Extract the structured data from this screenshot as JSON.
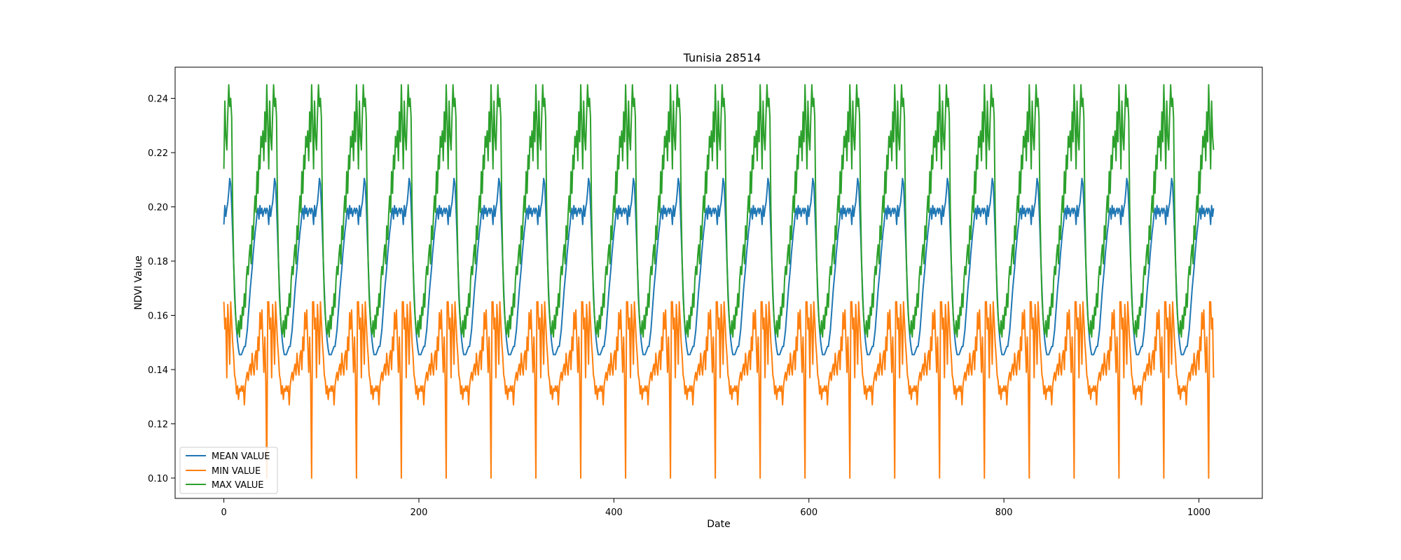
{
  "chart_data": {
    "type": "line",
    "title": "Tunisia 28514",
    "xlabel": "Date",
    "ylabel": "NDVI Value",
    "xlim": [
      -50,
      1065
    ],
    "ylim": [
      0.0925,
      0.2515
    ],
    "xticks": [
      0,
      200,
      400,
      600,
      800,
      1000
    ],
    "yticks": [
      0.1,
      0.12,
      0.14,
      0.16,
      0.18,
      0.2,
      0.22,
      0.24
    ],
    "xtick_labels": [
      "0",
      "200",
      "400",
      "600",
      "800",
      "1000"
    ],
    "ytick_labels": [
      "0.10",
      "0.12",
      "0.14",
      "0.16",
      "0.18",
      "0.20",
      "0.22",
      "0.24"
    ],
    "grid": false,
    "legend_position": "lower-left",
    "n_points": 1016,
    "cycle_length_days": 46,
    "n_cycles": 22,
    "series": [
      {
        "name": "MEAN VALUE",
        "color": "#1f77b4",
        "cycle_profile": [
          0.1935,
          0.2005,
          0.1965,
          0.1995,
          0.2015,
          0.2055,
          0.2105,
          0.2085,
          0.2005,
          0.1905,
          0.1795,
          0.1695,
          0.1605,
          0.1545,
          0.1505,
          0.1475,
          0.1455,
          0.1455,
          0.1455,
          0.1465,
          0.1475,
          0.1485,
          0.1485,
          0.1515,
          0.1545,
          0.1595,
          0.1645,
          0.1695,
          0.1735,
          0.1775,
          0.1825,
          0.1865,
          0.1905,
          0.1935,
          0.1975,
          0.1995,
          0.1955,
          0.2005,
          0.1975,
          0.1995,
          0.1965,
          0.1985,
          0.1995,
          0.1975,
          0.1995,
          0.1985
        ]
      },
      {
        "name": "MIN VALUE",
        "color": "#ff7f0e",
        "cycle_profile": [
          0.165,
          0.155,
          0.159,
          0.137,
          0.164,
          0.156,
          0.142,
          0.165,
          0.158,
          0.15,
          0.145,
          0.138,
          0.136,
          0.131,
          0.134,
          0.129,
          0.133,
          0.132,
          0.134,
          0.132,
          0.134,
          0.127,
          0.134,
          0.137,
          0.139,
          0.136,
          0.14,
          0.142,
          0.138,
          0.146,
          0.141,
          0.138,
          0.145,
          0.147,
          0.14,
          0.152,
          0.147,
          0.161,
          0.155,
          0.162,
          0.15,
          0.139,
          0.152,
          0.136,
          0.1,
          0.165
        ]
      },
      {
        "name": "MAX VALUE",
        "color": "#2ca02c",
        "cycle_profile": [
          0.214,
          0.239,
          0.226,
          0.221,
          0.234,
          0.245,
          0.237,
          0.24,
          0.233,
          0.2,
          0.18,
          0.167,
          0.16,
          0.155,
          0.153,
          0.158,
          0.152,
          0.16,
          0.155,
          0.163,
          0.16,
          0.168,
          0.163,
          0.173,
          0.178,
          0.175,
          0.182,
          0.186,
          0.179,
          0.193,
          0.188,
          0.197,
          0.204,
          0.198,
          0.213,
          0.205,
          0.219,
          0.214,
          0.226,
          0.222,
          0.228,
          0.217,
          0.235,
          0.224,
          0.245,
          0.231
        ]
      }
    ]
  }
}
